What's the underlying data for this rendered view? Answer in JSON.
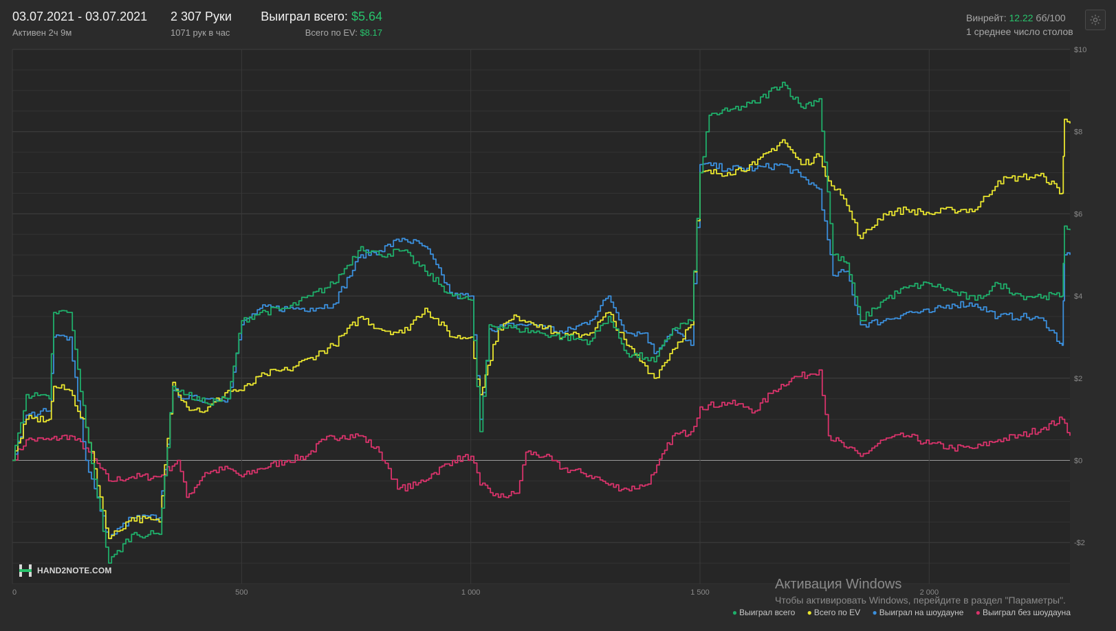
{
  "header": {
    "date_range": "03.07.2021 - 03.07.2021",
    "active": "Активен 2ч 9м",
    "hands": "2 307 Руки",
    "hands_per_hour": "1071 рук в час",
    "won_label": "Выиграл всего:",
    "won_value": "$5.64",
    "ev_label": "Всего по EV:",
    "ev_value": "$8.17",
    "winrate_label": "Винрейт:",
    "winrate_value": "12.22",
    "winrate_unit": "бб/100",
    "avg_tables": "1 среднее число столов",
    "settings_icon": "gear-icon"
  },
  "logo": {
    "text": "HAND2NOTE.COM"
  },
  "watermark": {
    "title": "Активация Windows",
    "subtitle": "Чтобы активировать Windows, перейдите в раздел \"Параметры\"."
  },
  "colors": {
    "total": "#1fae6a",
    "ev": "#e9e52e",
    "showdown": "#3b8fdc",
    "non_showdown": "#d9336b",
    "background": "#2b2b2b"
  },
  "chart_data": {
    "type": "line",
    "x_ticks": [
      {
        "v": 0,
        "label": "0"
      },
      {
        "v": 500,
        "label": "500"
      },
      {
        "v": 1000,
        "label": "1 000"
      },
      {
        "v": 1500,
        "label": "1 500"
      },
      {
        "v": 2000,
        "label": "2 000"
      }
    ],
    "y_ticks": [
      {
        "v": 10,
        "label": "$10"
      },
      {
        "v": 8,
        "label": "$8"
      },
      {
        "v": 6,
        "label": "$6"
      },
      {
        "v": 4,
        "label": "$4"
      },
      {
        "v": 2,
        "label": "$2"
      },
      {
        "v": 0,
        "label": "$0"
      },
      {
        "v": -2,
        "label": "-$2"
      }
    ],
    "xlim": [
      0,
      2307
    ],
    "ylim": [
      -3,
      10
    ],
    "grid": true,
    "legend_position": "bottom-right",
    "series": [
      {
        "key": "total",
        "name": "Выиграл всего",
        "points": [
          [
            0,
            0
          ],
          [
            30,
            1.6
          ],
          [
            80,
            1.5
          ],
          [
            90,
            3.6
          ],
          [
            125,
            3.6
          ],
          [
            160,
            0.8
          ],
          [
            210,
            -2.5
          ],
          [
            260,
            -1.8
          ],
          [
            320,
            -1.8
          ],
          [
            350,
            1.8
          ],
          [
            380,
            1.6
          ],
          [
            420,
            1.4
          ],
          [
            470,
            1.5
          ],
          [
            500,
            3.4
          ],
          [
            540,
            3.6
          ],
          [
            600,
            3.7
          ],
          [
            650,
            4.0
          ],
          [
            700,
            4.3
          ],
          [
            760,
            5.2
          ],
          [
            800,
            5.0
          ],
          [
            850,
            5.1
          ],
          [
            900,
            4.6
          ],
          [
            960,
            4.0
          ],
          [
            1000,
            3.9
          ],
          [
            1020,
            0.7
          ],
          [
            1040,
            3.3
          ],
          [
            1100,
            3.2
          ],
          [
            1150,
            3.1
          ],
          [
            1200,
            3.0
          ],
          [
            1260,
            2.9
          ],
          [
            1300,
            3.5
          ],
          [
            1340,
            2.6
          ],
          [
            1380,
            2.5
          ],
          [
            1400,
            2.4
          ],
          [
            1440,
            3.2
          ],
          [
            1480,
            3.4
          ],
          [
            1500,
            7.0
          ],
          [
            1520,
            8.4
          ],
          [
            1560,
            8.5
          ],
          [
            1620,
            8.7
          ],
          [
            1680,
            9.2
          ],
          [
            1720,
            8.6
          ],
          [
            1760,
            8.8
          ],
          [
            1790,
            5.0
          ],
          [
            1820,
            4.8
          ],
          [
            1850,
            3.4
          ],
          [
            1900,
            3.9
          ],
          [
            1950,
            4.2
          ],
          [
            2000,
            4.3
          ],
          [
            2050,
            4.1
          ],
          [
            2100,
            3.9
          ],
          [
            2150,
            4.3
          ],
          [
            2200,
            4.0
          ],
          [
            2250,
            4.0
          ],
          [
            2290,
            4.0
          ],
          [
            2295,
            5.7
          ],
          [
            2307,
            5.6
          ]
        ]
      },
      {
        "key": "ev",
        "name": "Всего по EV",
        "points": [
          [
            0,
            0
          ],
          [
            30,
            1.0
          ],
          [
            80,
            1.0
          ],
          [
            90,
            1.8
          ],
          [
            125,
            1.7
          ],
          [
            160,
            0.8
          ],
          [
            210,
            -1.9
          ],
          [
            260,
            -1.4
          ],
          [
            320,
            -1.5
          ],
          [
            350,
            1.9
          ],
          [
            380,
            1.3
          ],
          [
            420,
            1.2
          ],
          [
            470,
            1.7
          ],
          [
            500,
            1.7
          ],
          [
            550,
            2.1
          ],
          [
            600,
            2.2
          ],
          [
            650,
            2.5
          ],
          [
            700,
            2.8
          ],
          [
            760,
            3.5
          ],
          [
            800,
            3.2
          ],
          [
            850,
            3.1
          ],
          [
            900,
            3.7
          ],
          [
            960,
            3.0
          ],
          [
            1000,
            3.0
          ],
          [
            1020,
            1.6
          ],
          [
            1060,
            3.2
          ],
          [
            1100,
            3.5
          ],
          [
            1150,
            3.3
          ],
          [
            1200,
            3.0
          ],
          [
            1260,
            3.1
          ],
          [
            1300,
            3.6
          ],
          [
            1340,
            2.8
          ],
          [
            1380,
            2.3
          ],
          [
            1400,
            2.0
          ],
          [
            1440,
            2.7
          ],
          [
            1480,
            3.3
          ],
          [
            1500,
            7.0
          ],
          [
            1560,
            7.0
          ],
          [
            1620,
            7.2
          ],
          [
            1680,
            7.8
          ],
          [
            1720,
            7.2
          ],
          [
            1760,
            7.4
          ],
          [
            1780,
            6.8
          ],
          [
            1800,
            6.6
          ],
          [
            1820,
            6.2
          ],
          [
            1850,
            5.4
          ],
          [
            1900,
            6.0
          ],
          [
            1950,
            6.1
          ],
          [
            2000,
            6.0
          ],
          [
            2050,
            6.1
          ],
          [
            2100,
            6.1
          ],
          [
            2150,
            6.8
          ],
          [
            2200,
            6.9
          ],
          [
            2250,
            6.9
          ],
          [
            2290,
            6.5
          ],
          [
            2295,
            8.3
          ],
          [
            2307,
            8.2
          ]
        ]
      },
      {
        "key": "showdown",
        "name": "Выиграл на шоудауне",
        "points": [
          [
            0,
            0
          ],
          [
            30,
            1.1
          ],
          [
            80,
            1.2
          ],
          [
            90,
            3.0
          ],
          [
            125,
            3.0
          ],
          [
            160,
            0.0
          ],
          [
            210,
            -1.9
          ],
          [
            260,
            -1.4
          ],
          [
            320,
            -1.4
          ],
          [
            350,
            1.7
          ],
          [
            380,
            1.5
          ],
          [
            420,
            1.5
          ],
          [
            470,
            1.5
          ],
          [
            500,
            3.3
          ],
          [
            540,
            3.7
          ],
          [
            600,
            3.7
          ],
          [
            650,
            3.7
          ],
          [
            700,
            3.8
          ],
          [
            760,
            5.0
          ],
          [
            800,
            5.1
          ],
          [
            850,
            5.4
          ],
          [
            900,
            5.2
          ],
          [
            960,
            4.0
          ],
          [
            1000,
            4.0
          ],
          [
            1020,
            1.0
          ],
          [
            1040,
            3.2
          ],
          [
            1100,
            3.3
          ],
          [
            1150,
            3.3
          ],
          [
            1200,
            3.1
          ],
          [
            1260,
            3.4
          ],
          [
            1300,
            4.0
          ],
          [
            1340,
            3.1
          ],
          [
            1380,
            3.1
          ],
          [
            1400,
            2.6
          ],
          [
            1440,
            3.2
          ],
          [
            1480,
            2.8
          ],
          [
            1500,
            7.2
          ],
          [
            1560,
            7.1
          ],
          [
            1620,
            7.1
          ],
          [
            1680,
            7.2
          ],
          [
            1720,
            6.9
          ],
          [
            1760,
            6.6
          ],
          [
            1790,
            4.5
          ],
          [
            1820,
            4.6
          ],
          [
            1850,
            3.3
          ],
          [
            1900,
            3.4
          ],
          [
            1950,
            3.6
          ],
          [
            2000,
            3.6
          ],
          [
            2050,
            3.8
          ],
          [
            2100,
            3.8
          ],
          [
            2150,
            3.5
          ],
          [
            2200,
            3.5
          ],
          [
            2250,
            3.4
          ],
          [
            2290,
            2.8
          ],
          [
            2295,
            5.0
          ],
          [
            2307,
            5.0
          ]
        ]
      },
      {
        "key": "non_showdown",
        "name": "Выиграл без шоудауна",
        "points": [
          [
            0,
            0
          ],
          [
            30,
            0.5
          ],
          [
            80,
            0.5
          ],
          [
            125,
            0.6
          ],
          [
            160,
            0.3
          ],
          [
            210,
            -0.5
          ],
          [
            260,
            -0.4
          ],
          [
            320,
            -0.4
          ],
          [
            360,
            0.0
          ],
          [
            380,
            -0.9
          ],
          [
            420,
            -0.3
          ],
          [
            470,
            -0.2
          ],
          [
            500,
            -0.4
          ],
          [
            540,
            -0.2
          ],
          [
            600,
            0.0
          ],
          [
            640,
            0.1
          ],
          [
            680,
            0.5
          ],
          [
            720,
            0.6
          ],
          [
            760,
            0.6
          ],
          [
            800,
            0.2
          ],
          [
            820,
            -0.2
          ],
          [
            840,
            -0.7
          ],
          [
            880,
            -0.6
          ],
          [
            920,
            -0.3
          ],
          [
            960,
            0.0
          ],
          [
            1000,
            0.1
          ],
          [
            1020,
            -0.6
          ],
          [
            1060,
            -0.9
          ],
          [
            1100,
            -0.8
          ],
          [
            1120,
            0.2
          ],
          [
            1160,
            0.1
          ],
          [
            1200,
            -0.2
          ],
          [
            1240,
            -0.3
          ],
          [
            1270,
            -0.4
          ],
          [
            1300,
            -0.6
          ],
          [
            1340,
            -0.7
          ],
          [
            1380,
            -0.6
          ],
          [
            1400,
            -0.3
          ],
          [
            1440,
            0.6
          ],
          [
            1480,
            0.7
          ],
          [
            1500,
            1.3
          ],
          [
            1560,
            1.4
          ],
          [
            1600,
            1.3
          ],
          [
            1620,
            1.2
          ],
          [
            1660,
            1.7
          ],
          [
            1700,
            2.0
          ],
          [
            1740,
            2.1
          ],
          [
            1760,
            2.2
          ],
          [
            1780,
            0.6
          ],
          [
            1820,
            0.3
          ],
          [
            1850,
            0.1
          ],
          [
            1900,
            0.5
          ],
          [
            1950,
            0.6
          ],
          [
            2000,
            0.4
          ],
          [
            2050,
            0.3
          ],
          [
            2100,
            0.3
          ],
          [
            2150,
            0.5
          ],
          [
            2200,
            0.6
          ],
          [
            2250,
            0.8
          ],
          [
            2290,
            1.0
          ],
          [
            2307,
            0.6
          ]
        ]
      }
    ]
  }
}
